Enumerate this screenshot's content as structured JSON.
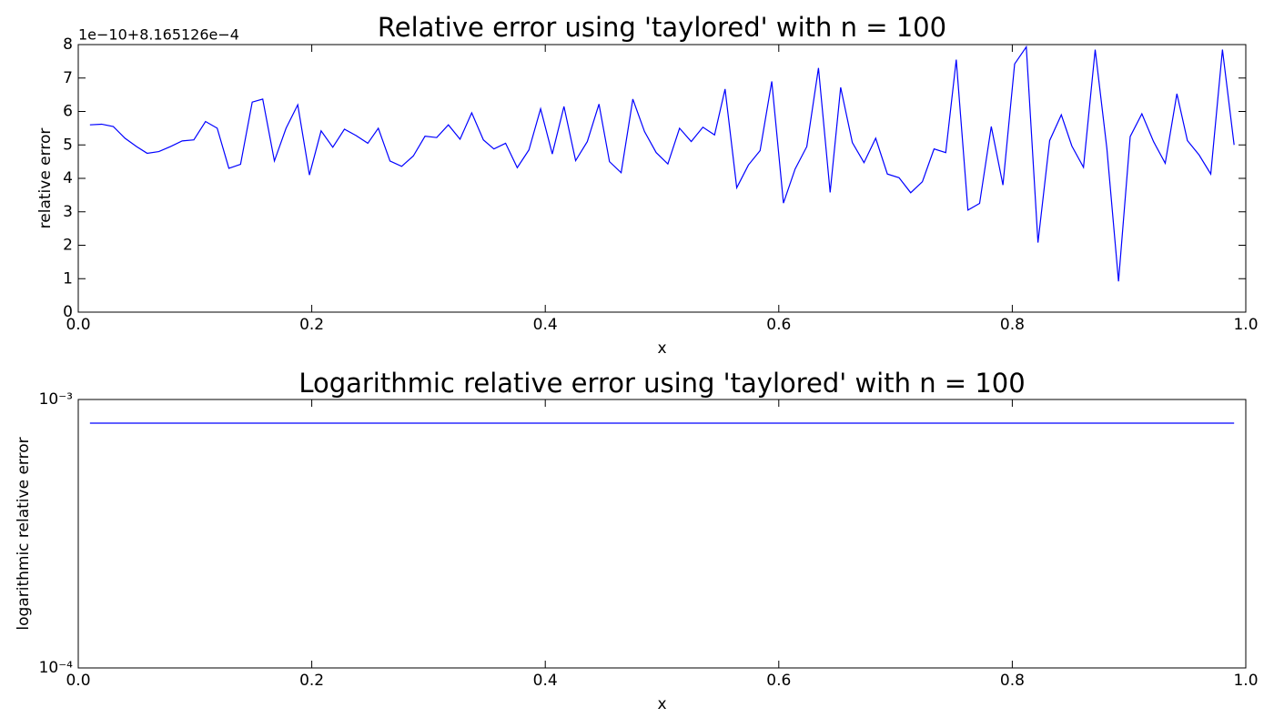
{
  "chart_data": [
    {
      "type": "line",
      "title": "Relative error using 'taylored' with n = 100",
      "xlabel": "x",
      "ylabel": "relative error",
      "offset_text": "1e−10+8.165126e−4",
      "x": [
        0.01,
        0.02,
        0.03,
        0.04,
        0.05,
        0.059,
        0.069,
        0.079,
        0.089,
        0.099,
        0.109,
        0.119,
        0.129,
        0.139,
        0.149,
        0.158,
        0.168,
        0.178,
        0.188,
        0.198,
        0.208,
        0.218,
        0.228,
        0.238,
        0.248,
        0.257,
        0.267,
        0.277,
        0.287,
        0.297,
        0.307,
        0.317,
        0.327,
        0.337,
        0.347,
        0.356,
        0.366,
        0.376,
        0.386,
        0.396,
        0.406,
        0.416,
        0.426,
        0.436,
        0.446,
        0.455,
        0.465,
        0.475,
        0.485,
        0.495,
        0.505,
        0.515,
        0.525,
        0.535,
        0.545,
        0.554,
        0.564,
        0.574,
        0.584,
        0.594,
        0.604,
        0.614,
        0.624,
        0.634,
        0.644,
        0.653,
        0.663,
        0.673,
        0.683,
        0.693,
        0.703,
        0.713,
        0.723,
        0.733,
        0.743,
        0.752,
        0.762,
        0.772,
        0.782,
        0.792,
        0.802,
        0.812,
        0.822,
        0.832,
        0.842,
        0.851,
        0.861,
        0.871,
        0.881,
        0.891,
        0.901,
        0.911,
        0.921,
        0.931,
        0.941,
        0.95,
        0.96,
        0.97,
        0.98,
        0.99
      ],
      "series": [
        {
          "color": "#0000ff",
          "values": [
            5.6,
            5.62,
            5.55,
            5.2,
            4.95,
            4.75,
            4.8,
            4.95,
            5.12,
            5.15,
            5.7,
            5.5,
            4.3,
            4.42,
            6.28,
            6.37,
            4.52,
            5.5,
            6.2,
            4.1,
            5.42,
            4.93,
            5.47,
            5.28,
            5.05,
            5.5,
            4.52,
            4.36,
            4.67,
            5.26,
            5.22,
            5.6,
            5.17,
            5.96,
            5.15,
            4.88,
            5.05,
            4.32,
            4.85,
            6.08,
            4.73,
            6.15,
            4.53,
            5.1,
            6.22,
            4.5,
            4.17,
            6.37,
            5.4,
            4.77,
            4.43,
            5.5,
            5.1,
            5.53,
            5.3,
            6.67,
            3.72,
            4.4,
            4.83,
            6.9,
            3.26,
            4.28,
            4.95,
            7.3,
            3.58,
            6.72,
            5.07,
            4.47,
            5.2,
            4.13,
            4.02,
            3.57,
            3.9,
            4.88,
            4.77,
            7.55,
            3.05,
            3.25,
            5.55,
            3.8,
            7.42,
            7.93,
            2.08,
            5.13,
            5.9,
            4.97,
            4.33,
            7.85,
            4.9,
            0.92,
            5.25,
            5.93,
            5.1,
            4.45,
            6.53,
            5.13,
            4.7,
            4.13,
            7.85,
            5.0
          ]
        }
      ],
      "xlim": [
        0,
        1
      ],
      "xticks": [
        {
          "value": 0,
          "label": "0.0"
        },
        0.2,
        0.4,
        0.6,
        0.8,
        {
          "value": 1,
          "label": "1.0"
        }
      ],
      "ylim": [
        0,
        8
      ],
      "yticks": [
        0,
        1,
        2,
        3,
        4,
        5,
        6,
        7,
        8
      ]
    },
    {
      "type": "line",
      "title": "Logarithmic relative error using 'taylored' with n = 100",
      "xlabel": "x",
      "ylabel": "logarithmic relative error",
      "yscale": "log",
      "x": [
        0.01,
        0.02,
        0.03,
        0.04,
        0.05,
        0.059,
        0.069,
        0.079,
        0.089,
        0.099,
        0.109,
        0.119,
        0.129,
        0.139,
        0.149,
        0.158,
        0.168,
        0.178,
        0.188,
        0.198,
        0.208,
        0.218,
        0.228,
        0.238,
        0.248,
        0.257,
        0.267,
        0.277,
        0.287,
        0.297,
        0.307,
        0.317,
        0.327,
        0.337,
        0.347,
        0.356,
        0.366,
        0.376,
        0.386,
        0.396,
        0.406,
        0.416,
        0.426,
        0.436,
        0.446,
        0.455,
        0.465,
        0.475,
        0.485,
        0.495,
        0.505,
        0.515,
        0.525,
        0.535,
        0.545,
        0.554,
        0.564,
        0.574,
        0.584,
        0.594,
        0.604,
        0.614,
        0.624,
        0.634,
        0.644,
        0.653,
        0.663,
        0.673,
        0.683,
        0.693,
        0.703,
        0.713,
        0.723,
        0.733,
        0.743,
        0.752,
        0.762,
        0.772,
        0.782,
        0.792,
        0.802,
        0.812,
        0.822,
        0.832,
        0.842,
        0.851,
        0.861,
        0.871,
        0.881,
        0.891,
        0.901,
        0.911,
        0.921,
        0.931,
        0.941,
        0.95,
        0.96,
        0.97,
        0.98,
        0.99
      ],
      "series": [
        {
          "color": "#0000ff",
          "values": [
            0.0008165126,
            0.0008165126,
            0.0008165126,
            0.0008165126,
            0.0008165126,
            0.0008165126,
            0.0008165126,
            0.0008165126,
            0.0008165126,
            0.0008165126,
            0.0008165126,
            0.0008165126,
            0.0008165126,
            0.0008165126,
            0.0008165126,
            0.0008165126,
            0.0008165126,
            0.0008165126,
            0.0008165126,
            0.0008165126,
            0.0008165126,
            0.0008165126,
            0.0008165126,
            0.0008165126,
            0.0008165126,
            0.0008165126,
            0.0008165126,
            0.0008165126,
            0.0008165126,
            0.0008165126,
            0.0008165126,
            0.0008165126,
            0.0008165126,
            0.0008165126,
            0.0008165126,
            0.0008165126,
            0.0008165126,
            0.0008165126,
            0.0008165126,
            0.0008165126,
            0.0008165126,
            0.0008165126,
            0.0008165126,
            0.0008165126,
            0.0008165126,
            0.0008165126,
            0.0008165126,
            0.0008165126,
            0.0008165126,
            0.0008165126,
            0.0008165126,
            0.0008165126,
            0.0008165126,
            0.0008165126,
            0.0008165126,
            0.0008165126,
            0.0008165126,
            0.0008165126,
            0.0008165126,
            0.0008165126,
            0.0008165126,
            0.0008165126,
            0.0008165126,
            0.0008165126,
            0.0008165126,
            0.0008165126,
            0.0008165126,
            0.0008165126,
            0.0008165126,
            0.0008165126,
            0.0008165126,
            0.0008165126,
            0.0008165126,
            0.0008165126,
            0.0008165126,
            0.0008165126,
            0.0008165126,
            0.0008165126,
            0.0008165126,
            0.0008165126,
            0.0008165126,
            0.0008165126,
            0.0008165126,
            0.0008165126,
            0.0008165126,
            0.0008165126,
            0.0008165126,
            0.0008165126,
            0.0008165126,
            0.0008165126,
            0.0008165126,
            0.0008165126,
            0.0008165126,
            0.0008165126,
            0.0008165126,
            0.0008165126,
            0.0008165126,
            0.0008165126,
            0.0008165126,
            0.0008165126
          ]
        }
      ],
      "xlim": [
        0,
        1
      ],
      "xticks": [
        {
          "value": 0,
          "label": "0.0"
        },
        0.2,
        0.4,
        0.6,
        0.8,
        {
          "value": 1,
          "label": "1.0"
        }
      ],
      "ylim": [
        0.0001,
        0.001
      ],
      "yticks": [
        {
          "value": 0.0001,
          "label": "10⁻⁴"
        },
        {
          "value": 0.001,
          "label": "10⁻³"
        }
      ]
    }
  ]
}
